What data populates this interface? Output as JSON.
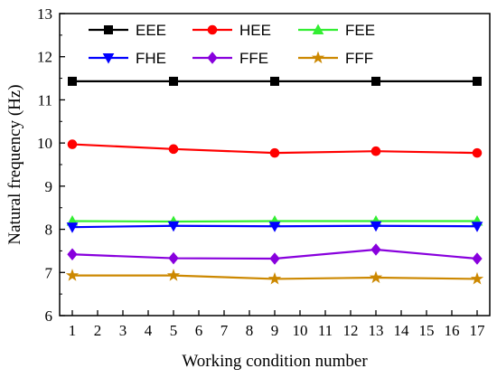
{
  "chart_data": {
    "type": "line",
    "title": "",
    "xlabel": "Working condition number",
    "ylabel": "Natural frequency (Hz)",
    "xlim": [
      0.5,
      17.5
    ],
    "ylim": [
      6,
      13
    ],
    "x_ticks": [
      1,
      2,
      3,
      4,
      5,
      6,
      7,
      8,
      9,
      10,
      11,
      12,
      13,
      14,
      15,
      16,
      17
    ],
    "y_ticks": [
      6,
      7,
      8,
      9,
      10,
      11,
      12,
      13
    ],
    "x": [
      1,
      5,
      9,
      13,
      17
    ],
    "legend_position": "top",
    "grid": false,
    "series": [
      {
        "name": "EEE",
        "color": "#000000",
        "marker": "square",
        "values": [
          11.43,
          11.43,
          11.43,
          11.43,
          11.43
        ]
      },
      {
        "name": "HEE",
        "color": "#ff0000",
        "marker": "circle",
        "values": [
          9.97,
          9.86,
          9.77,
          9.81,
          9.77
        ]
      },
      {
        "name": "FEE",
        "color": "#33ee33",
        "marker": "triangle-up",
        "values": [
          8.19,
          8.18,
          8.19,
          8.19,
          8.19
        ]
      },
      {
        "name": "FHE",
        "color": "#0000ff",
        "marker": "triangle-down",
        "values": [
          8.05,
          8.08,
          8.07,
          8.08,
          8.07
        ]
      },
      {
        "name": "FFE",
        "color": "#8800dd",
        "marker": "diamond",
        "values": [
          7.42,
          7.33,
          7.32,
          7.53,
          7.32
        ]
      },
      {
        "name": "FFF",
        "color": "#cc8800",
        "marker": "star",
        "values": [
          6.93,
          6.93,
          6.85,
          6.88,
          6.85
        ]
      }
    ]
  }
}
